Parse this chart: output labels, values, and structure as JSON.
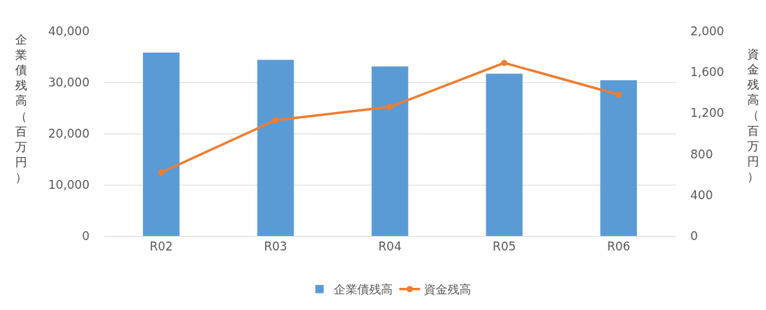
{
  "chart_data": {
    "type": "bar",
    "categories": [
      "R02",
      "R03",
      "R04",
      "R05",
      "R06"
    ],
    "series": [
      {
        "name": "企業債残高",
        "color": "#5b9bd5",
        "values": [
          35800,
          34400,
          33100,
          31700,
          30400
        ]
      },
      {
        "name": "資金残高",
        "type": "line",
        "axis": "y2",
        "color": "#ed7d31",
        "values": [
          620,
          1130,
          1260,
          1690,
          1380
        ]
      }
    ],
    "ylabel": "企業債残高（百万円）",
    "y2label": "資金残高（百万円）",
    "ylim": [
      0,
      40000
    ],
    "yticks": [
      {
        "value": 0,
        "label": "0"
      },
      {
        "value": 10000,
        "label": "10,000"
      },
      {
        "value": 20000,
        "label": "20,000"
      },
      {
        "value": 30000,
        "label": "30,000"
      },
      {
        "value": 40000,
        "label": "40,000"
      }
    ],
    "y2lim": [
      0,
      2000
    ],
    "y2ticks": [
      {
        "value": 0,
        "label": "0"
      },
      {
        "value": 400,
        "label": "400"
      },
      {
        "value": 800,
        "label": "800"
      },
      {
        "value": 1200,
        "label": "1,200"
      },
      {
        "value": 1600,
        "label": "1,600"
      },
      {
        "value": 2000,
        "label": "2,000"
      }
    ],
    "grid": "y",
    "legend": "bottom",
    "marker": "circle",
    "line_style": "solid"
  }
}
